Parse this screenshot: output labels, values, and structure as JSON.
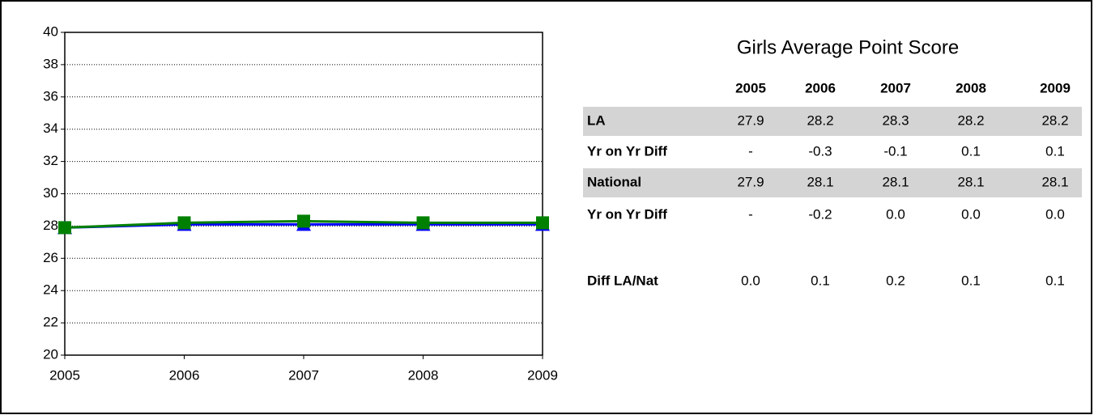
{
  "chart_data": {
    "type": "line",
    "categories": [
      "2005",
      "2006",
      "2007",
      "2008",
      "2009"
    ],
    "series": [
      {
        "color": "#0000ff",
        "marker": "triangle",
        "values": [
          27.9,
          28.1,
          28.1,
          28.1,
          28.1
        ]
      },
      {
        "color": "#008000",
        "marker": "square",
        "values": [
          27.9,
          28.2,
          28.3,
          28.2,
          28.2
        ]
      }
    ],
    "ylim": [
      20,
      40
    ],
    "yticks": [
      20,
      22,
      24,
      26,
      28,
      30,
      32,
      34,
      36,
      38,
      40
    ],
    "grid": true
  },
  "table": {
    "title": "Girls Average Point Score",
    "columns": [
      "2005",
      "2006",
      "2007",
      "2008",
      "2009"
    ],
    "rows": [
      [
        "LA",
        "27.9",
        "28.2",
        "28.3",
        "28.2",
        "28.2"
      ],
      [
        "Yr on Yr Diff",
        "-",
        "-0.3",
        "-0.1",
        "0.1",
        "0.1"
      ],
      [
        "National",
        "27.9",
        "28.1",
        "28.1",
        "28.1",
        "28.1"
      ],
      [
        "Yr on Yr Diff",
        "-",
        "-0.2",
        "0.0",
        "0.0",
        "0.0"
      ],
      [
        "Diff LA/Nat",
        "0.0",
        "0.1",
        "0.2",
        "0.1",
        "0.1"
      ]
    ]
  }
}
